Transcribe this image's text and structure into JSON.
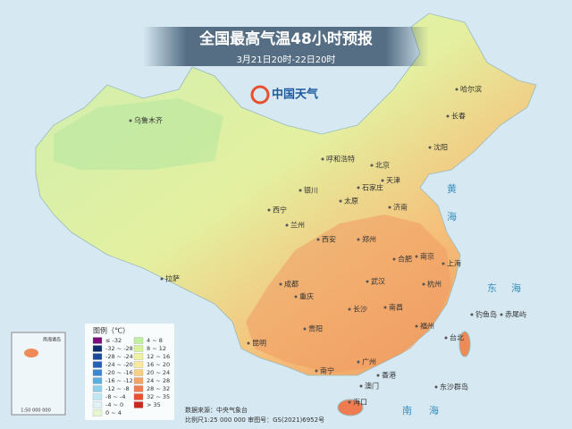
{
  "header": {
    "title": "全国最高气温48小时预报",
    "subtitle": "3月21日20时-22日20时"
  },
  "logo": "中国天气",
  "cities": [
    "乌鲁木齐",
    "哈尔滨",
    "长春",
    "沈阳",
    "呼和浩特",
    "北京",
    "天津",
    "石家庄",
    "银川",
    "太原",
    "济南",
    "西宁",
    "兰州",
    "郑州",
    "西安",
    "合肥",
    "南京",
    "上海",
    "拉萨",
    "成都",
    "武汉",
    "杭州",
    "重庆",
    "长沙",
    "南昌",
    "贵阳",
    "福州",
    "台北",
    "昆明",
    "南宁",
    "广州",
    "香港",
    "澳门",
    "海口",
    "钓鱼岛",
    "赤尾屿",
    "东沙群岛"
  ],
  "seas": [
    "黄",
    "海",
    "东",
    "海",
    "南",
    "海"
  ],
  "legend": {
    "title": "图例（℃）",
    "items": [
      {
        "label": "≤ -32",
        "color": "#7b0a7b"
      },
      {
        "label": "-32 ~ -28",
        "color": "#0c2d6b"
      },
      {
        "label": "-28 ~ -24",
        "color": "#1a4a9a"
      },
      {
        "label": "-24 ~ -20",
        "color": "#2460b8"
      },
      {
        "label": "-20 ~ -16",
        "color": "#3a86d0"
      },
      {
        "label": "-16 ~ -12",
        "color": "#5aaee0"
      },
      {
        "label": "-12 ~ -8",
        "color": "#8ed0ec"
      },
      {
        "label": "-8 ~ -4",
        "color": "#bfe8f4"
      },
      {
        "label": "-4 ~ 0",
        "color": "#dff3f7"
      },
      {
        "label": "0 ~ 4",
        "color": "#e6f7d0"
      },
      {
        "label": "4 ~ 8",
        "color": "#c0f0a0"
      },
      {
        "label": "8 ~ 12",
        "color": "#d8f29a"
      },
      {
        "label": "12 ~ 16",
        "color": "#eef3a0"
      },
      {
        "label": "16 ~ 20",
        "color": "#f8e8a0"
      },
      {
        "label": "20 ~ 24",
        "color": "#f7cf85"
      },
      {
        "label": "24 ~ 28",
        "color": "#f3a466"
      },
      {
        "label": "28 ~ 32",
        "color": "#ee7c50"
      },
      {
        "label": "32 ~ 35",
        "color": "#e85030"
      },
      {
        "label": "> 35",
        "color": "#c8281e"
      }
    ]
  },
  "footer": {
    "source": "数据来源：中央气象台",
    "scale": "比例尺1:25 000 000  审图号：GS(2021)6952号"
  },
  "inset": {
    "title": "南海诸岛",
    "scale": "1:50 000 000"
  }
}
